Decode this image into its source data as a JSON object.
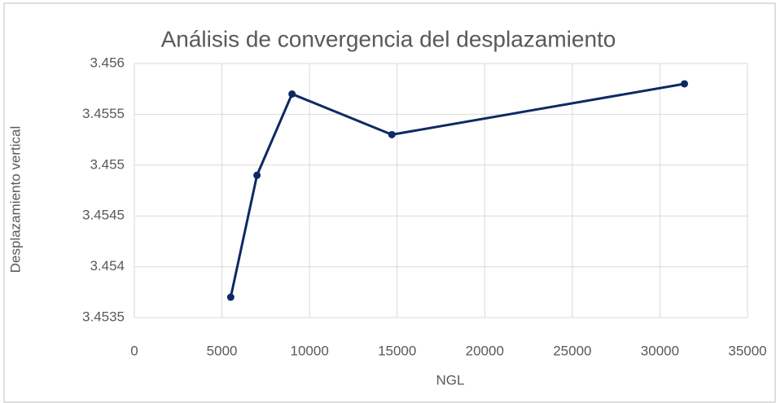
{
  "chart_data": {
    "type": "line",
    "title": "Análisis de convergencia del desplazamiento",
    "xlabel": "NGL",
    "ylabel": "Desplazamiento vertical",
    "x": [
      5500,
      7000,
      9000,
      14700,
      31400
    ],
    "series": [
      {
        "color": "#0d2a63",
        "values": [
          3.4537,
          3.4549,
          3.4557,
          3.4553,
          3.4558
        ]
      }
    ],
    "xlim": [
      0,
      35000
    ],
    "xticks": [
      0,
      5000,
      10000,
      15000,
      20000,
      25000,
      30000,
      35000
    ],
    "ylim": [
      3.4535,
      3.456
    ],
    "yticks": [
      3.4535,
      3.454,
      3.4545,
      3.455,
      3.4555,
      3.456
    ],
    "grid": true
  }
}
